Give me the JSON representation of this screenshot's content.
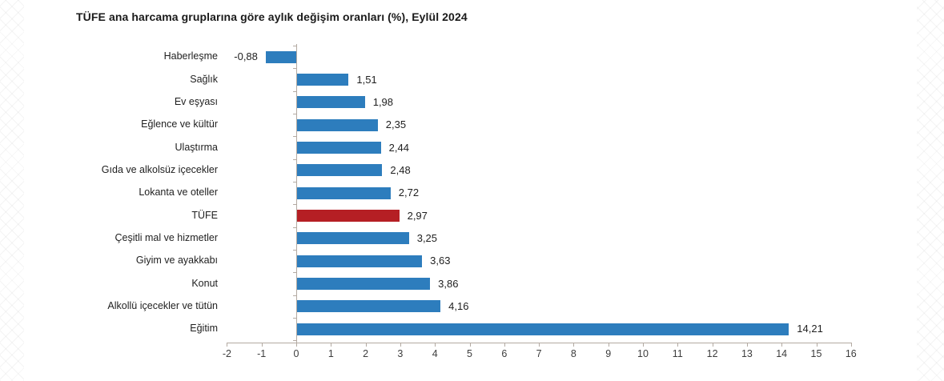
{
  "title": "TÜFE ana harcama gruplarına göre aylık değişim oranları (%), Eylül 2024",
  "chart_data": {
    "type": "bar",
    "orientation": "horizontal",
    "title": "TÜFE ana harcama gruplarına göre aylık değişim oranları (%), Eylül 2024",
    "categories": [
      "Haberleşme",
      "Sağlık",
      "Ev eşyası",
      "Eğlence ve kültür",
      "Ulaştırma",
      "Gıda ve alkolsüz içecekler",
      "Lokanta ve oteller",
      "TÜFE",
      "Çeşitli mal ve hizmetler",
      "Giyim ve ayakkabı",
      "Konut",
      "Alkollü içecekler ve tütün",
      "Eğitim"
    ],
    "values": [
      -0.88,
      1.51,
      1.98,
      2.35,
      2.44,
      2.48,
      2.72,
      2.97,
      3.25,
      3.63,
      3.86,
      4.16,
      14.21
    ],
    "value_labels": [
      "-0,88",
      "1,51",
      "1,98",
      "2,35",
      "2,44",
      "2,48",
      "2,72",
      "2,97",
      "3,25",
      "3,63",
      "3,86",
      "4,16",
      "14,21"
    ],
    "highlight_category": "TÜFE",
    "xlim": [
      -2,
      16
    ],
    "x_ticks": [
      -2,
      -1,
      0,
      1,
      2,
      3,
      4,
      5,
      6,
      7,
      8,
      9,
      10,
      11,
      12,
      13,
      14,
      15,
      16
    ],
    "x_tick_labels": [
      "-2",
      "-1",
      "0",
      "1",
      "2",
      "3",
      "4",
      "5",
      "6",
      "7",
      "8",
      "9",
      "10",
      "11",
      "12",
      "13",
      "14",
      "15",
      "16"
    ],
    "grid": false,
    "legend": "none",
    "colors": {
      "bar": "#2d7dbd",
      "highlight": "#b51f24",
      "axis": "#b3aaa2",
      "text": "#1f1f1f",
      "tick_text": "#3d3d3d"
    }
  }
}
